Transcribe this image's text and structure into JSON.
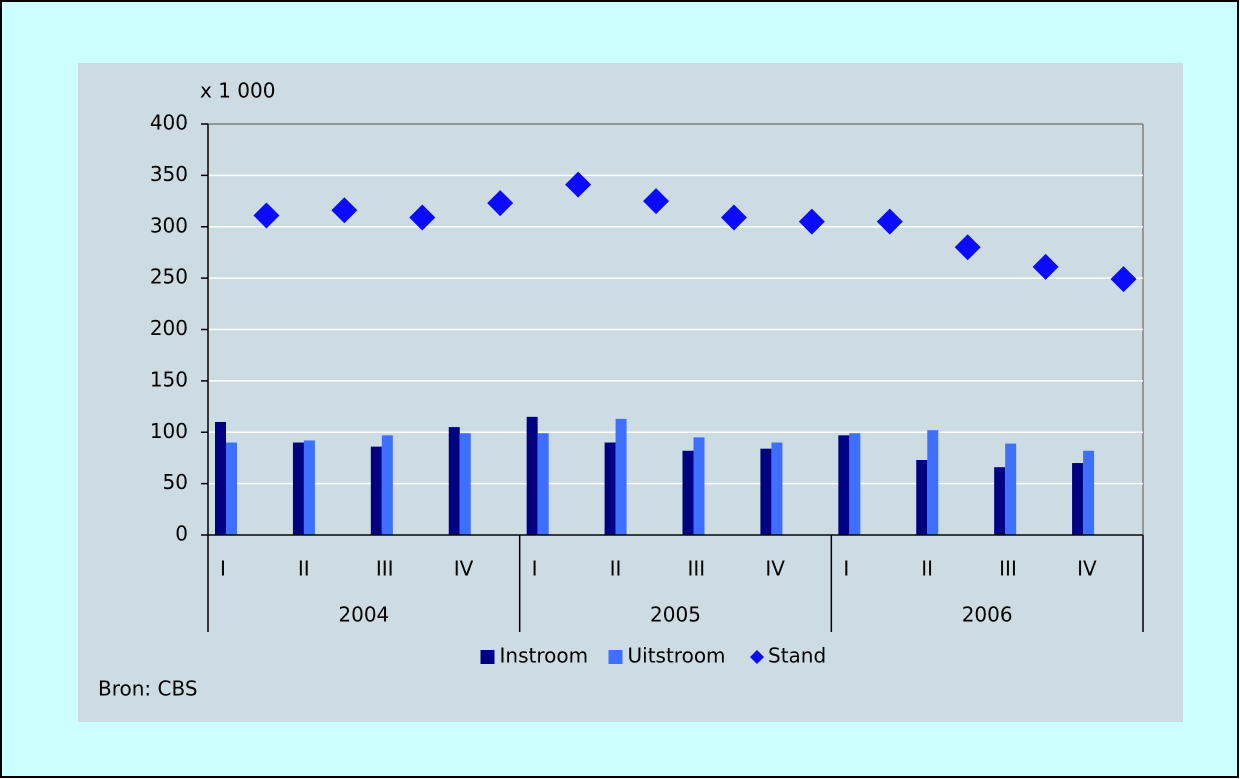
{
  "chart_data": {
    "type": "bar",
    "y_unit_label": "x 1 000",
    "categories": [
      "I",
      "II",
      "III",
      "IV",
      "I",
      "II",
      "III",
      "IV",
      "I",
      "II",
      "III",
      "IV"
    ],
    "category_groups": [
      "2004",
      "2005",
      "2006"
    ],
    "series": [
      {
        "name": "Instroom",
        "color": "#000080",
        "values": [
          110,
          90,
          86,
          105,
          115,
          90,
          82,
          84,
          97,
          73,
          66,
          70
        ]
      },
      {
        "name": "Uitstroom",
        "color": "#3f6fff",
        "values": [
          90,
          92,
          97,
          99,
          99,
          113,
          95,
          90,
          99,
          102,
          89,
          82
        ]
      },
      {
        "name": "Stand",
        "color": "#0a0aff",
        "type": "scatter",
        "marker": "diamond",
        "values": [
          311,
          316,
          309,
          323,
          341,
          325,
          309,
          305,
          305,
          280,
          261,
          249
        ]
      }
    ],
    "ylim": [
      0,
      400
    ],
    "yticks": [
      0,
      50,
      100,
      150,
      200,
      250,
      300,
      350,
      400
    ],
    "grid": true,
    "source": "Bron: CBS"
  }
}
